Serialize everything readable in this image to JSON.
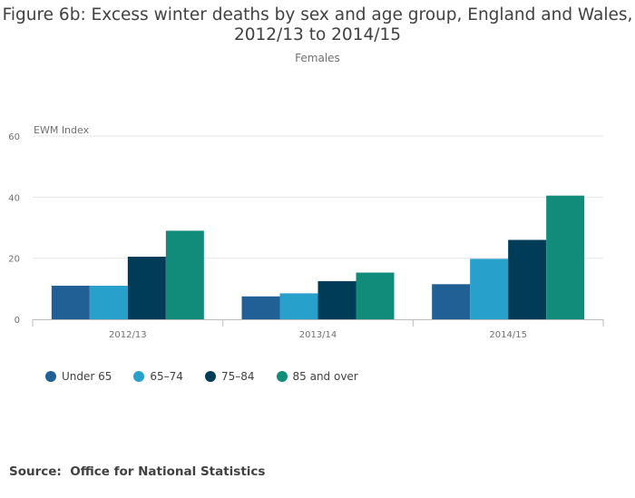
{
  "header": {
    "title_line1": "Figure 6b: Excess winter deaths by sex and age group, England and Wales,",
    "title_line2": "2012/13 to 2014/15",
    "subtitle": "Females"
  },
  "source": {
    "label": "Source:",
    "text": "Office for National Statistics"
  },
  "chart_data": {
    "type": "bar",
    "title": "Figure 6b: Excess winter deaths by sex and age group, England and Wales, 2012/13 to 2014/15",
    "subtitle": "Females",
    "ylabel": "EWM Index",
    "xlabel": "",
    "ylim": [
      0,
      60
    ],
    "yticks": [
      0,
      20,
      40,
      60
    ],
    "grid": true,
    "legend_position": "bottom-left",
    "categories": [
      "2012/13",
      "2013/14",
      "2014/15"
    ],
    "series": [
      {
        "name": "Under 65",
        "color": "#206095",
        "values": [
          11,
          7.5,
          11.5
        ]
      },
      {
        "name": "65–74",
        "color": "#27a0cc",
        "values": [
          11,
          8.5,
          19.8
        ]
      },
      {
        "name": "75–84",
        "color": "#003c57",
        "values": [
          20.5,
          12.5,
          26
        ]
      },
      {
        "name": "85 and over",
        "color": "#118c7b",
        "values": [
          29,
          15.3,
          40.5
        ]
      }
    ]
  }
}
